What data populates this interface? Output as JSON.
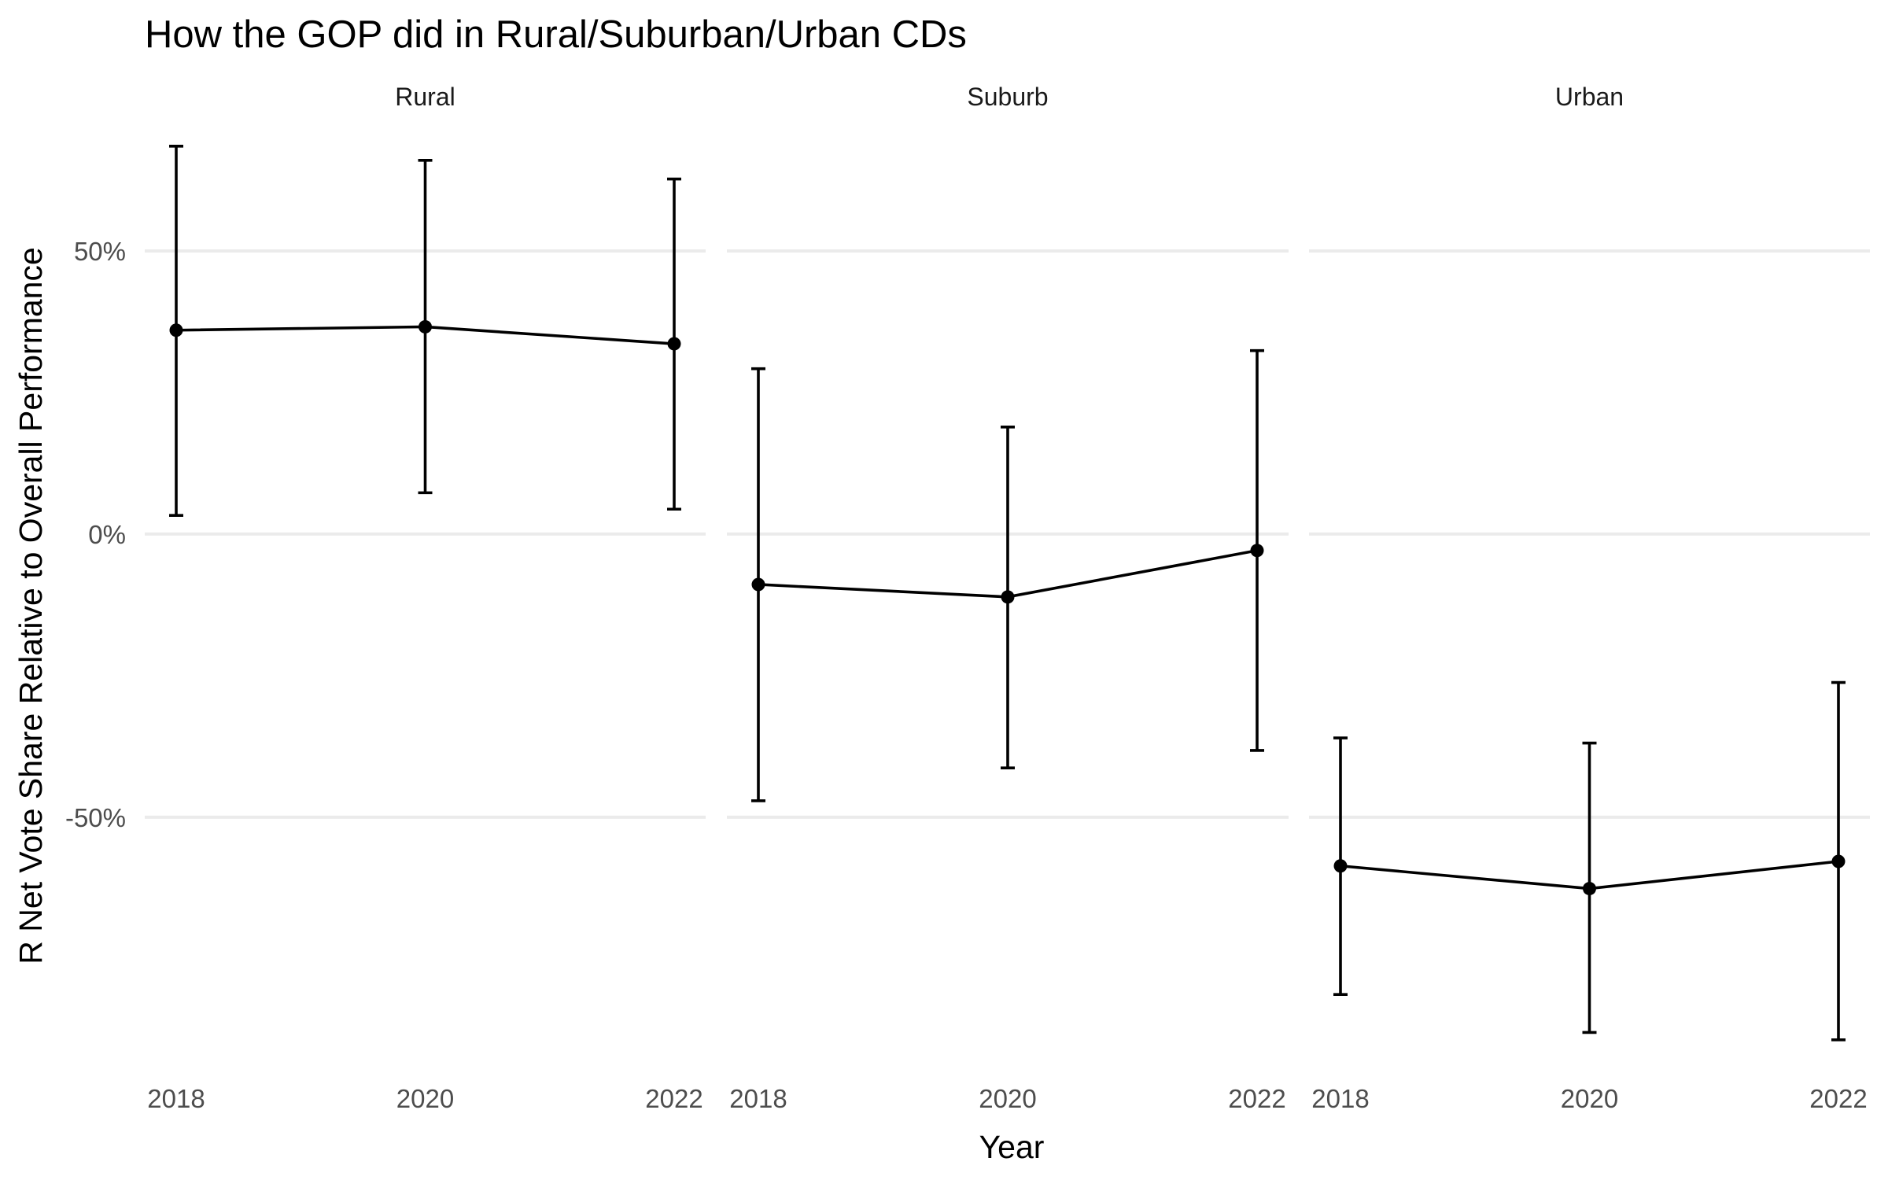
{
  "chart_data": {
    "type": "line",
    "title": "How the GOP did in Rural/Suburban/Urban CDs",
    "xlabel": "Year",
    "ylabel": "R Net Vote Share Relative to Overall Performance",
    "x": [
      2018,
      2020,
      2022
    ],
    "x_tick_labels": [
      "2018",
      "2020",
      "2022"
    ],
    "y_ticks": [
      50,
      0,
      -50
    ],
    "y_tick_labels": [
      "50%",
      "0%",
      "-50%"
    ],
    "ylim": [
      -96,
      70
    ],
    "grid": true,
    "panels": [
      {
        "label": "Rural",
        "points": [
          {
            "x": 2018,
            "y": 36.0,
            "lower": 3.3,
            "upper": 68.5
          },
          {
            "x": 2020,
            "y": 36.6,
            "lower": 7.3,
            "upper": 66.0
          },
          {
            "x": 2022,
            "y": 33.6,
            "lower": 4.4,
            "upper": 62.7
          }
        ]
      },
      {
        "label": "Suburb",
        "points": [
          {
            "x": 2018,
            "y": -8.9,
            "lower": -47.1,
            "upper": 29.2
          },
          {
            "x": 2020,
            "y": -11.1,
            "lower": -41.3,
            "upper": 18.9
          },
          {
            "x": 2022,
            "y": -2.9,
            "lower": -38.2,
            "upper": 32.4
          }
        ]
      },
      {
        "label": "Urban",
        "points": [
          {
            "x": 2018,
            "y": -58.6,
            "lower": -81.3,
            "upper": -36.0
          },
          {
            "x": 2020,
            "y": -62.6,
            "lower": -88.0,
            "upper": -36.9
          },
          {
            "x": 2022,
            "y": -57.8,
            "lower": -89.3,
            "upper": -26.2
          }
        ]
      }
    ]
  }
}
